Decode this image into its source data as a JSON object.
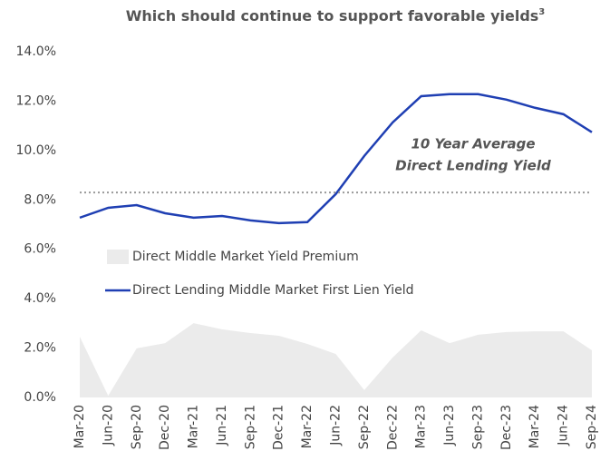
{
  "chart_data": {
    "type": "line",
    "title": "Which should continue to support favorable yields",
    "title_footnote": "3",
    "categories": [
      "Mar-20",
      "Jun-20",
      "Sep-20",
      "Dec-20",
      "Mar-21",
      "Jun-21",
      "Sep-21",
      "Dec-21",
      "Mar-22",
      "Jun-22",
      "Sep-22",
      "Dec-22",
      "Mar-23",
      "Jun-23",
      "Sep-23",
      "Dec-23",
      "Mar-24",
      "Jun-24",
      "Sep-24"
    ],
    "series": [
      {
        "name": "Direct Middle Market Yield Premium",
        "kind": "area",
        "color": "#ebebeb",
        "values": [
          2.46,
          0.07,
          1.99,
          2.2,
          3.01,
          2.76,
          2.61,
          2.5,
          2.17,
          1.76,
          0.3,
          1.62,
          2.72,
          2.2,
          2.54,
          2.65,
          2.68,
          2.68,
          1.91
        ]
      },
      {
        "name": "Direct Lending Middle Market First Lien Yield",
        "kind": "line",
        "color": "#1f3fb3",
        "values": [
          7.28,
          7.68,
          7.79,
          7.46,
          7.28,
          7.35,
          7.17,
          7.06,
          7.1,
          8.24,
          9.78,
          11.14,
          12.2,
          12.28,
          12.28,
          12.06,
          11.73,
          11.47,
          10.74
        ]
      }
    ],
    "reference_line": {
      "value": 8.3,
      "color": "#999999"
    },
    "annotation": [
      "10 Year Average",
      "Direct Lending Yield"
    ],
    "ylim": [
      0,
      14
    ],
    "yticks": [
      {
        "value": 0,
        "label": "0.0%"
      },
      {
        "value": 2,
        "label": "2.0%"
      },
      {
        "value": 4,
        "label": "4.0%"
      },
      {
        "value": 6,
        "label": "6.0%"
      },
      {
        "value": 8,
        "label": "8.0%"
      },
      {
        "value": 10,
        "label": "10.0%"
      },
      {
        "value": 12,
        "label": "12.0%"
      },
      {
        "value": 14,
        "label": "14.0%"
      }
    ],
    "grid": false
  }
}
